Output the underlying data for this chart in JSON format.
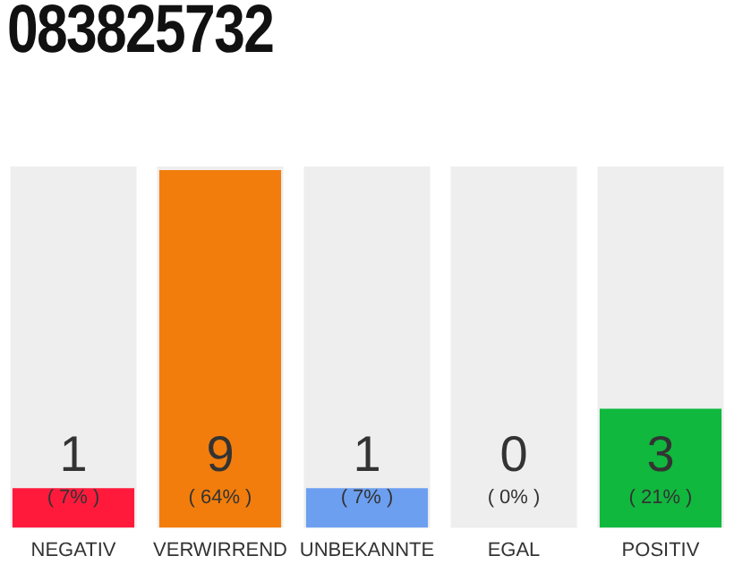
{
  "chart_data": {
    "type": "bar",
    "title": "083825732",
    "categories": [
      "NEGATIV",
      "VERWIRREND",
      "UNBEKANNTE",
      "EGAL",
      "POSITIV"
    ],
    "values": [
      1,
      9,
      1,
      0,
      3
    ],
    "colors": [
      "#ff1a3c",
      "#f27d0c",
      "#6c9ff0",
      "#bbbbbb",
      "#10b83e"
    ],
    "ylim": [
      0,
      9
    ],
    "tick_labels": "x",
    "data_labels": true,
    "grid": false,
    "legend": false,
    "bands": [
      {
        "axis": "x",
        "from": "NEGATIV",
        "to": "NEGATIV",
        "color": "#eeeeee"
      },
      {
        "axis": "x",
        "from": "VERWIRREND",
        "to": "VERWIRREND",
        "color": "#eeeeee"
      },
      {
        "axis": "x",
        "from": "UNBEKANNTE",
        "to": "UNBEKANNTE",
        "color": "#eeeeee"
      },
      {
        "axis": "x",
        "from": "EGAL",
        "to": "EGAL",
        "color": "#eeeeee"
      },
      {
        "axis": "x",
        "from": "POSITIV",
        "to": "POSITIV",
        "color": "#eeeeee"
      }
    ],
    "annotations": [
      "( 7% )",
      "( 64% )",
      "( 7% )",
      "( 0% )",
      "( 21% )"
    ]
  }
}
